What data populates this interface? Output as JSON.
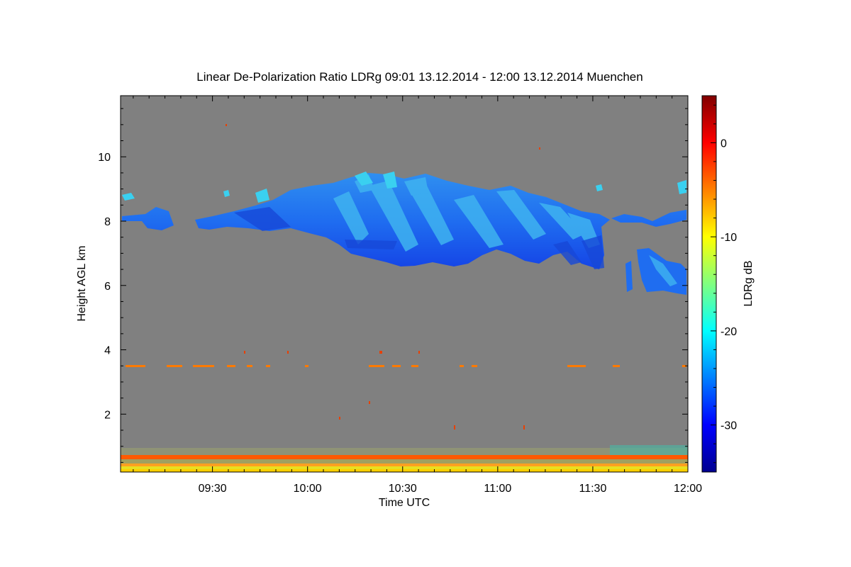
{
  "chart_data": {
    "type": "heatmap",
    "title": "Linear De-Polarization Ratio LDRg   09:01 13.12.2014 - 12:00 13.12.2014 Muenchen",
    "xlabel": "Time UTC",
    "ylabel": "Height AGL km",
    "colorbar_label": "LDRg dB",
    "x_range": [
      "09:01",
      "12:00"
    ],
    "y_range_km": [
      0.2,
      11.9
    ],
    "color_range_db": [
      -35,
      5
    ],
    "x_ticks": [
      "09:30",
      "10:00",
      "10:30",
      "11:00",
      "11:30",
      "12:00"
    ],
    "y_ticks": [
      "2",
      "4",
      "6",
      "8",
      "10"
    ],
    "colorbar_ticks": [
      "0",
      "-10",
      "-20",
      "-30"
    ],
    "background_color": "#808080",
    "features": [
      {
        "name": "Main cirrus layer",
        "time_start": "09:08",
        "time_end": "12:00",
        "height_bottom_km": 6.6,
        "height_top_km": 9.5,
        "ldr_db": -25
      },
      {
        "name": "Lower cirrus fall streaks",
        "time_start": "11:40",
        "time_end": "12:00",
        "height_bottom_km": 5.8,
        "height_top_km": 7.2,
        "ldr_db": -24
      },
      {
        "name": "Sparse layer near 3.5 km",
        "height_km": 3.5,
        "ldr_db": -3
      },
      {
        "name": "Boundary-layer aerosol",
        "height_bottom_km": 0.2,
        "height_top_km": 0.7,
        "ldr_db": -5
      }
    ]
  }
}
